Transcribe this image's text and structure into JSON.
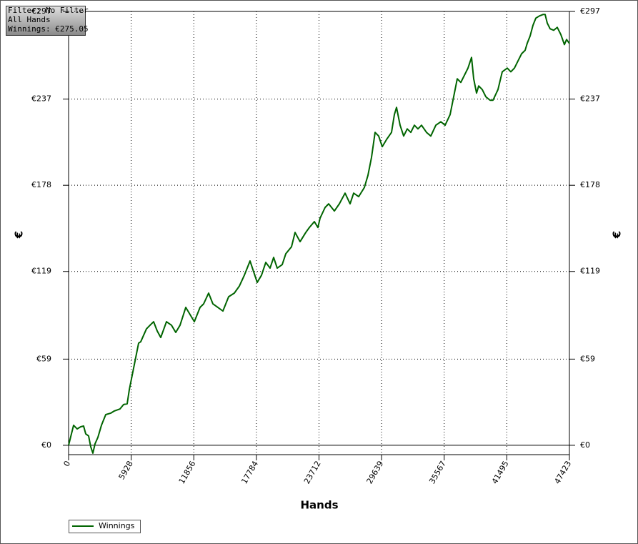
{
  "chart_data": {
    "type": "line",
    "annotations": [
      "Filter: No Filter",
      "All Hands",
      "Winnings: €275.05"
    ],
    "xlabel": "Hands",
    "ylabel": "€",
    "y2label": "€",
    "xlim": [
      0,
      47423
    ],
    "xticks": [
      0,
      5928,
      11856,
      17784,
      23712,
      29639,
      35567,
      41495,
      47423
    ],
    "ylim": [
      -6.4,
      297
    ],
    "yticks": [
      {
        "value": 0,
        "label": "€0"
      },
      {
        "value": 59,
        "label": "€59"
      },
      {
        "value": 119,
        "label": "€119"
      },
      {
        "value": 178,
        "label": "€178"
      },
      {
        "value": 237,
        "label": "€237"
      },
      {
        "value": 297,
        "label": "€297"
      }
    ],
    "y2lim": [
      -6.4,
      297
    ],
    "y2ticks": [
      {
        "value": 0,
        "label": "€0"
      },
      {
        "value": 59,
        "label": "€59"
      },
      {
        "value": 119,
        "label": "€119"
      },
      {
        "value": 178,
        "label": "€178"
      },
      {
        "value": 237,
        "label": "€237"
      },
      {
        "value": 297,
        "label": "€297"
      }
    ],
    "grid": true,
    "legend": "bottom-left",
    "series": [
      {
        "name": "Winnings",
        "color": "#006400",
        "x": [
          0,
          474,
          812,
          1150,
          1421,
          1624,
          1894,
          2097,
          2300,
          2503,
          2774,
          3112,
          3518,
          3991,
          4329,
          4871,
          5209,
          5547,
          5750,
          6021,
          6359,
          6629,
          6832,
          7373,
          7712,
          8050,
          8388,
          8727,
          9268,
          9742,
          10148,
          10554,
          11095,
          11501,
          11907,
          12448,
          12786,
          13259,
          13665,
          14139,
          14612,
          15154,
          15695,
          16169,
          16642,
          17183,
          17522,
          17860,
          18266,
          18672,
          19077,
          19416,
          19754,
          20228,
          20566,
          21107,
          21445,
          21919,
          22460,
          22798,
          23272,
          23610,
          23813,
          24287,
          24625,
          25166,
          25639,
          26181,
          26654,
          26993,
          27466,
          28007,
          28346,
          28684,
          29022,
          29361,
          29699,
          30105,
          30578,
          30849,
          31052,
          31390,
          31728,
          32067,
          32405,
          32743,
          33081,
          33420,
          33893,
          34299,
          34773,
          35246,
          35652,
          36126,
          36464,
          36802,
          37140,
          37479,
          37817,
          38155,
          38358,
          38629,
          38832,
          39170,
          39508,
          39914,
          40185,
          40658,
          41064,
          41538,
          41876,
          42214,
          42552,
          42891,
          43229,
          43432,
          43702,
          43973,
          44243,
          44581,
          44920,
          45123,
          45326,
          45596,
          45934,
          46272,
          46611,
          46949,
          47152,
          47423
        ],
        "values": [
          0,
          13.7,
          11.2,
          12.7,
          13.2,
          7.8,
          6.4,
          -1.0,
          -5.4,
          1.0,
          5.4,
          13.7,
          21.0,
          22.0,
          23.5,
          24.9,
          27.9,
          28.4,
          38.1,
          47.9,
          60.1,
          69.9,
          70.9,
          79.7,
          82.2,
          84.6,
          78.3,
          73.8,
          84.6,
          82.2,
          77.3,
          82.2,
          94.4,
          89.5,
          84.6,
          94.4,
          96.8,
          104.2,
          96.8,
          94.4,
          91.9,
          101.7,
          104.2,
          109.0,
          116.4,
          126.2,
          118.8,
          111.5,
          116.4,
          125.2,
          121.3,
          128.6,
          121.3,
          123.7,
          131.1,
          135.9,
          145.7,
          139.4,
          145.7,
          149.1,
          153.1,
          149.1,
          155.5,
          162.8,
          165.3,
          160.4,
          165.3,
          172.6,
          165.3,
          172.6,
          170.2,
          176.5,
          184.8,
          197.1,
          214.2,
          211.7,
          204.4,
          209.3,
          214.2,
          226.4,
          231.3,
          219.1,
          211.7,
          216.6,
          214.2,
          219.1,
          216.6,
          219.1,
          214.2,
          211.7,
          219.1,
          221.5,
          219.1,
          226.4,
          238.6,
          250.9,
          248.4,
          253.3,
          258.2,
          265.5,
          250.9,
          241.1,
          246.0,
          243.5,
          238.6,
          236.2,
          236.2,
          243.5,
          255.7,
          258.2,
          255.7,
          258.2,
          263.1,
          268.0,
          270.4,
          275.3,
          280.2,
          287.5,
          292.4,
          293.9,
          294.9,
          294.9,
          289.0,
          285.1,
          284.1,
          286.1,
          281.2,
          274.3,
          277.8,
          275.05
        ]
      }
    ]
  }
}
